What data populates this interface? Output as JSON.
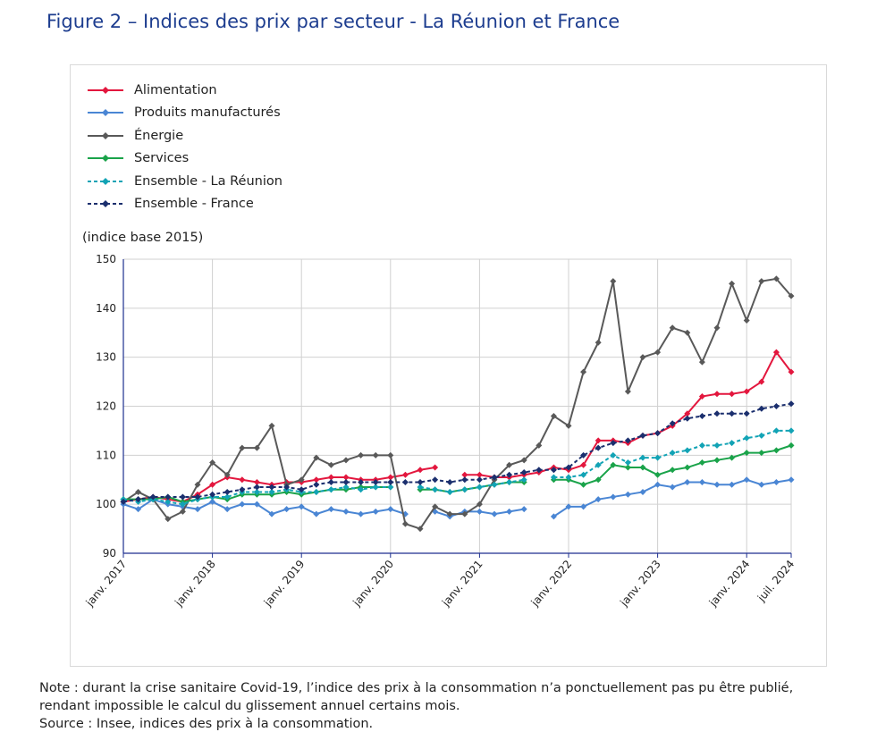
{
  "title": "Figure 2 – Indices des prix par secteur - La Réunion et France",
  "unit_label": "(indice base 2015)",
  "note_lines": [
    "Note : durant la crise sanitaire Covid-19, l’indice des prix à la consommation n’a ponctuellement pas pu être publié,",
    "rendant impossible le calcul du glissement annuel certains mois.",
    "Source : Insee, indices des prix à la consommation."
  ],
  "chart_data": {
    "type": "line",
    "title": "Indices des prix par secteur - La Réunion et France",
    "xlabel": "",
    "ylabel": "(indice base 2015)",
    "ylim": [
      90,
      150
    ],
    "yticks": [
      90,
      100,
      110,
      120,
      130,
      140,
      150
    ],
    "x_start": "2017-01",
    "x_end": "2024-07",
    "xtick_labels": [
      "janv. 2017",
      "janv. 2018",
      "janv. 2019",
      "janv. 2020",
      "janv. 2021",
      "janv. 2022",
      "janv. 2023",
      "janv. 2024",
      "juil. 2024"
    ],
    "xtick_months": [
      0,
      12,
      24,
      36,
      48,
      60,
      72,
      84,
      90
    ],
    "grid": "vertical-and-horizontal",
    "legend": "top-left",
    "note": "Values are approximate, estimated from the plotted lines. Monthly sampling points (every 2 months); null = missing.",
    "series": [
      {
        "name": "Alimentation",
        "color": "#e3173e",
        "dashed": false,
        "months": [
          0,
          2,
          4,
          6,
          8,
          10,
          12,
          14,
          16,
          18,
          20,
          22,
          24,
          26,
          28,
          30,
          32,
          34,
          36,
          38,
          40,
          42,
          44,
          46,
          48,
          50,
          52,
          54,
          56,
          58,
          60,
          62,
          64,
          66,
          68,
          70,
          72,
          74,
          76,
          78,
          80,
          82,
          84,
          86,
          88,
          90
        ],
        "values": [
          100.5,
          101,
          101.5,
          101,
          100.5,
          102,
          104,
          105.5,
          105,
          104.5,
          104,
          104.5,
          104.5,
          105,
          105.5,
          105.5,
          105,
          105,
          105.5,
          106,
          107,
          107.5,
          null,
          106,
          106,
          105.5,
          105.5,
          106,
          106.5,
          107.5,
          107,
          108,
          113,
          113,
          112.5,
          114,
          114.5,
          116,
          118.5,
          122,
          122.5,
          122.5,
          123,
          125,
          131,
          127
        ]
      },
      {
        "name": "Produits manufacturés",
        "color": "#4a86d4",
        "dashed": false,
        "months": [
          0,
          2,
          4,
          6,
          8,
          10,
          12,
          14,
          16,
          18,
          20,
          22,
          24,
          26,
          28,
          30,
          32,
          34,
          36,
          38,
          40,
          42,
          44,
          46,
          48,
          50,
          52,
          54,
          56,
          58,
          60,
          62,
          64,
          66,
          68,
          70,
          72,
          74,
          76,
          78,
          80,
          82,
          84,
          86,
          88,
          90
        ],
        "values": [
          100,
          99,
          101,
          100,
          99.5,
          99,
          100.5,
          99,
          100,
          100,
          98,
          99,
          99.5,
          98,
          99,
          98.5,
          98,
          98.5,
          99,
          98,
          null,
          98.5,
          97.5,
          98.5,
          98.5,
          98,
          98.5,
          99,
          null,
          97.5,
          99.5,
          99.5,
          101,
          101.5,
          102,
          102.5,
          104,
          103.5,
          104.5,
          104.5,
          104,
          104,
          105,
          104,
          104.5,
          105
        ]
      },
      {
        "name": "Énergie",
        "color": "#595959",
        "dashed": false,
        "months": [
          0,
          2,
          4,
          6,
          8,
          10,
          12,
          14,
          16,
          18,
          20,
          22,
          24,
          26,
          28,
          30,
          32,
          34,
          36,
          38,
          40,
          42,
          44,
          46,
          48,
          50,
          52,
          54,
          56,
          58,
          60,
          62,
          64,
          66,
          68,
          70,
          72,
          74,
          76,
          78,
          80,
          82,
          84,
          86,
          88,
          90
        ],
        "values": [
          100.5,
          102.5,
          101,
          97,
          98.5,
          104,
          108.5,
          106,
          111.5,
          111.5,
          116,
          104,
          105,
          109.5,
          108,
          109,
          110,
          110,
          110,
          96,
          95,
          99.5,
          98,
          98,
          100,
          105,
          108,
          109,
          112,
          118,
          116,
          127,
          133,
          145.5,
          123,
          130,
          131,
          136,
          135,
          129,
          136,
          145,
          137.5,
          145.5,
          146,
          142.5
        ]
      },
      {
        "name": "Services",
        "color": "#1aa34a",
        "dashed": false,
        "months": [
          0,
          2,
          4,
          6,
          8,
          10,
          12,
          14,
          16,
          18,
          20,
          22,
          24,
          26,
          28,
          30,
          32,
          34,
          36,
          38,
          40,
          42,
          44,
          46,
          48,
          50,
          52,
          54,
          56,
          58,
          60,
          62,
          64,
          66,
          68,
          70,
          72,
          74,
          76,
          78,
          80,
          82,
          84,
          86,
          88,
          90
        ],
        "values": [
          101,
          101,
          101,
          101.5,
          100.5,
          101,
          101.5,
          101,
          102,
          102,
          102,
          102.5,
          102,
          102.5,
          103,
          103,
          103.5,
          103.5,
          103.5,
          null,
          103,
          103,
          102.5,
          103,
          103.5,
          104,
          104.5,
          104.5,
          null,
          105,
          105,
          104,
          105,
          108,
          107.5,
          107.5,
          106,
          107,
          107.5,
          108.5,
          109,
          109.5,
          110.5,
          110.5,
          111,
          112
        ]
      },
      {
        "name": "Ensemble - La Réunion",
        "color": "#12a3b5",
        "dashed": true,
        "months": [
          0,
          2,
          4,
          6,
          8,
          10,
          12,
          14,
          16,
          18,
          20,
          22,
          24,
          26,
          28,
          30,
          32,
          34,
          36,
          38,
          40,
          42,
          44,
          46,
          48,
          50,
          52,
          54,
          56,
          58,
          60,
          62,
          64,
          66,
          68,
          70,
          72,
          74,
          76,
          78,
          80,
          82,
          84,
          86,
          88,
          90
        ],
        "values": [
          101,
          100.5,
          101,
          100.5,
          100,
          101,
          101.5,
          101.5,
          102.5,
          102.5,
          102.5,
          103,
          102.5,
          102.5,
          103,
          103.5,
          103,
          103.5,
          103.5,
          null,
          103.5,
          103,
          102.5,
          103,
          103.5,
          104,
          104.5,
          105,
          null,
          105.5,
          105.5,
          106,
          108,
          110,
          108.5,
          109.5,
          109.5,
          110.5,
          111,
          112,
          112,
          112.5,
          113.5,
          114,
          115,
          115
        ]
      },
      {
        "name": "Ensemble - France",
        "color": "#1b2f6e",
        "dashed": true,
        "months": [
          0,
          2,
          4,
          6,
          8,
          10,
          12,
          14,
          16,
          18,
          20,
          22,
          24,
          26,
          28,
          30,
          32,
          34,
          36,
          38,
          40,
          42,
          44,
          46,
          48,
          50,
          52,
          54,
          56,
          58,
          60,
          62,
          64,
          66,
          68,
          70,
          72,
          74,
          76,
          78,
          80,
          82,
          84,
          86,
          88,
          90
        ],
        "values": [
          100.5,
          101,
          101.5,
          101.5,
          101.5,
          101.5,
          102,
          102.5,
          103,
          103.5,
          103.5,
          103.5,
          103,
          104,
          104.5,
          104.5,
          104.5,
          104.5,
          104.5,
          104.5,
          104.5,
          105,
          104.5,
          105,
          105,
          105.5,
          106,
          106.5,
          107,
          107,
          107.5,
          110,
          111.5,
          112.5,
          113,
          114,
          114.5,
          116.5,
          117.5,
          118,
          118.5,
          118.5,
          118.5,
          119.5,
          120,
          120.5
        ]
      }
    ]
  }
}
